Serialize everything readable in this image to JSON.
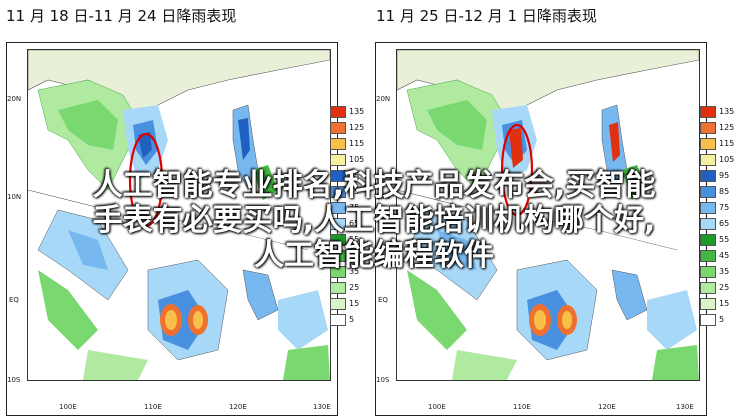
{
  "panels": [
    {
      "title": "11 月 18 日-11 月 24 日降雨表现",
      "y_labels": [
        "20N",
        "10N",
        "EQ",
        "10S"
      ],
      "x_labels": [
        "100E",
        "110E",
        "120E",
        "130E"
      ]
    },
    {
      "title": "11 月 25 日-12 月 1 日降雨表现",
      "y_labels": [
        "20N",
        "10N",
        "EQ",
        "10S"
      ],
      "x_labels": [
        "100E",
        "110E",
        "120E",
        "130E"
      ]
    }
  ],
  "legend": {
    "values": [
      "135",
      "125",
      "115",
      "105",
      "95",
      "85",
      "75",
      "65",
      "55",
      "45",
      "35",
      "25",
      "15",
      "5"
    ],
    "colors": [
      "#e03010",
      "#f07030",
      "#f8c048",
      "#f4f0a0",
      "#2060c0",
      "#4a90e0",
      "#78b8f0",
      "#a8d8f8",
      "#1a9a28",
      "#40b840",
      "#7ad870",
      "#b0eaa0",
      "#d8f4c8",
      "#ffffff"
    ]
  },
  "overlay": {
    "line1": "人工智能专业排名,科技产品发布会,买智能",
    "line2": "手表有必要买吗,人工智能培训机构哪个好,",
    "line3": "人工智能编程软件"
  }
}
